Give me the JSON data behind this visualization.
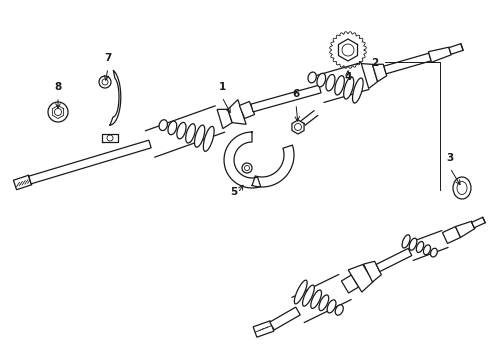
{
  "bg_color": "#ffffff",
  "line_color": "#1a1a1a",
  "fig_width": 4.89,
  "fig_height": 3.6,
  "dpi": 100,
  "lw_thin": 0.6,
  "lw_med": 0.9,
  "lw_thick": 1.4,
  "label_fs": 7.5
}
